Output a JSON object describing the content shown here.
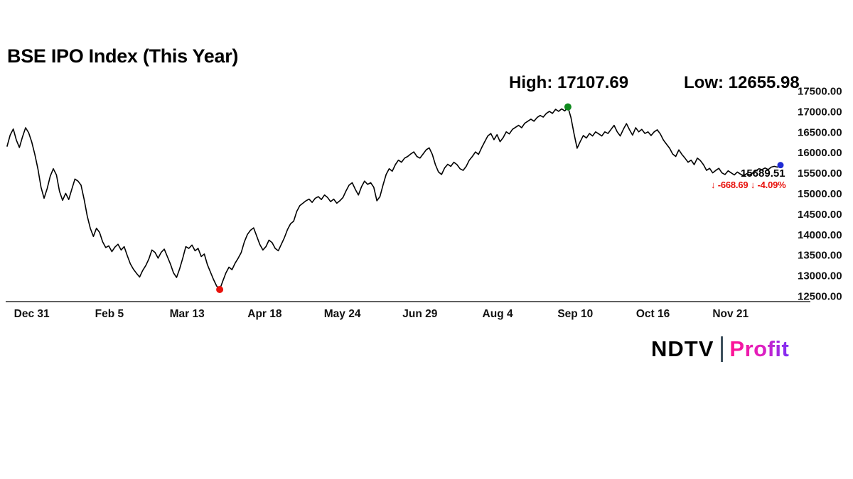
{
  "annotations": {
    "high_label": "High: 17107.69",
    "low_label": "Low: 12655.98",
    "last_price": "15689.51",
    "last_change": "↓ -668.69 ↓ -4.09%"
  },
  "logo": {
    "ndtv": "NDTV",
    "profit": "Profit",
    "profit_color_start": "#ff1493",
    "profit_color_end": "#7b2ff7"
  },
  "chart_data": {
    "type": "line",
    "title": "BSE IPO Index (This Year)",
    "line_color": "#000000",
    "grid": false,
    "legend": "none",
    "ylim": [
      12500,
      17500
    ],
    "y_tick_labels": [
      "17500.00",
      "17000.00",
      "16500.00",
      "16000.00",
      "15500.00",
      "15000.00",
      "14500.00",
      "14000.00",
      "13500.00",
      "13000.00",
      "12500.00"
    ],
    "x_tick_labels": [
      "Dec 31",
      "Feb 5",
      "Mar 13",
      "Apr 18",
      "May 24",
      "Jun 29",
      "Aug 4",
      "Sep 10",
      "Oct 16",
      "Nov 21"
    ],
    "x_tick_indices": [
      8,
      33.2,
      58.4,
      83.6,
      108.8,
      134,
      159.2,
      184.4,
      209.6,
      234.8
    ],
    "high": {
      "index": 182,
      "value": 17107.69,
      "color": "#0f8a1d"
    },
    "low": {
      "index": 69,
      "value": 12655.98,
      "color": "#e8120c"
    },
    "last": {
      "index": 251,
      "value": 15689.51,
      "color": "#1f2bd4"
    },
    "values": [
      16150,
      16420,
      16570,
      16300,
      16120,
      16380,
      16600,
      16480,
      16250,
      15950,
      15600,
      15150,
      14880,
      15120,
      15420,
      15600,
      15450,
      15050,
      14830,
      15000,
      14850,
      15100,
      15350,
      15300,
      15200,
      14850,
      14450,
      14150,
      13950,
      14150,
      14050,
      13820,
      13680,
      13720,
      13580,
      13690,
      13760,
      13620,
      13700,
      13480,
      13280,
      13150,
      13050,
      12960,
      13120,
      13240,
      13400,
      13620,
      13560,
      13420,
      13560,
      13640,
      13460,
      13280,
      13060,
      12950,
      13160,
      13420,
      13700,
      13660,
      13740,
      13600,
      13660,
      13460,
      13520,
      13260,
      13080,
      12900,
      12740,
      12655.98,
      12860,
      13060,
      13200,
      13140,
      13300,
      13420,
      13560,
      13820,
      14000,
      14100,
      14160,
      13960,
      13760,
      13620,
      13700,
      13860,
      13800,
      13660,
      13600,
      13760,
      13920,
      14120,
      14260,
      14320,
      14560,
      14700,
      14760,
      14820,
      14860,
      14780,
      14880,
      14920,
      14850,
      14960,
      14900,
      14800,
      14860,
      14760,
      14820,
      14900,
      15060,
      15200,
      15260,
      15100,
      14960,
      15160,
      15300,
      15220,
      15260,
      15150,
      14820,
      14920,
      15200,
      15460,
      15600,
      15540,
      15700,
      15810,
      15760,
      15860,
      15900,
      15960,
      16010,
      15900,
      15860,
      15960,
      16060,
      16110,
      15950,
      15700,
      15520,
      15460,
      15620,
      15710,
      15660,
      15760,
      15700,
      15600,
      15560,
      15660,
      15810,
      15900,
      16010,
      15950,
      16110,
      16260,
      16400,
      16460,
      16310,
      16430,
      16260,
      16360,
      16500,
      16450,
      16560,
      16610,
      16660,
      16600,
      16710,
      16760,
      16810,
      16760,
      16850,
      16900,
      16860,
      16950,
      17000,
      16950,
      17050,
      17000,
      17060,
      17010,
      17107.69,
      16850,
      16450,
      16100,
      16260,
      16410,
      16350,
      16460,
      16400,
      16500,
      16450,
      16400,
      16500,
      16460,
      16560,
      16660,
      16500,
      16400,
      16560,
      16700,
      16550,
      16420,
      16600,
      16500,
      16560,
      16460,
      16500,
      16410,
      16500,
      16550,
      16450,
      16300,
      16200,
      16100,
      15960,
      15900,
      16060,
      15950,
      15860,
      15760,
      15810,
      15700,
      15860,
      15800,
      15700,
      15560,
      15610,
      15500,
      15560,
      15610,
      15500,
      15460,
      15550,
      15500,
      15450,
      15520,
      15470,
      15430,
      15480,
      15450,
      15500,
      15550,
      15600,
      15580,
      15620,
      15580,
      15640,
      15660,
      15640,
      15689.51
    ]
  }
}
